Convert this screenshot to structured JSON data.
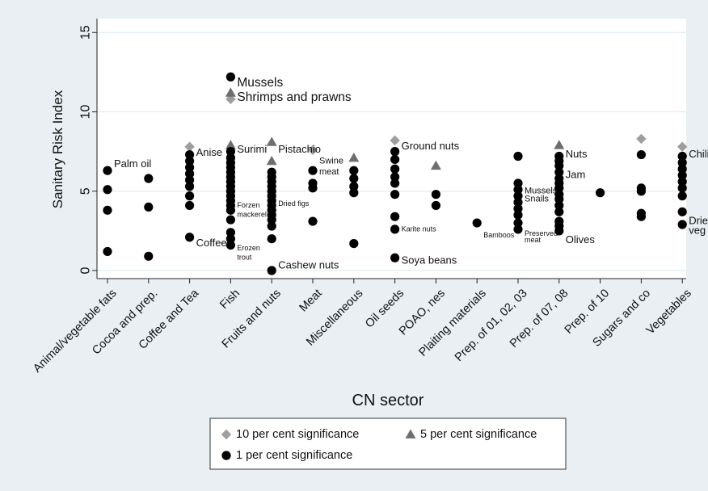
{
  "chart_data": {
    "type": "scatter",
    "title": "",
    "xlabel": "CN sector",
    "ylabel": "Sanitary Risk Index",
    "ylim": [
      -1,
      16
    ],
    "yticks": [
      0,
      5,
      10,
      15
    ],
    "grid": "horizontal",
    "legend_position": "bottom",
    "categories": [
      "Animal/vegetable fats",
      "Cocoa and prep.",
      "Coffee and Tea",
      "Fish",
      "Fruits and nuts",
      "Meat",
      "Miscellaneous",
      "Oil seeds",
      "POAO, nes",
      "Plaiting materials",
      "Prep. of 01, 02, 03",
      "Prep. of 07, 08",
      "Prep. of 10",
      "Sugars and co",
      "Vegetables"
    ],
    "series": [
      {
        "name": "10 per cent significance",
        "marker": "diamond",
        "color": "#9e9e9e",
        "points": [
          [
            "Coffee and Tea",
            7.8
          ],
          [
            "Fish",
            10.8
          ],
          [
            "Meat",
            7.6
          ],
          [
            "Oil seeds",
            8.2
          ],
          [
            "Sugars and co",
            8.3
          ],
          [
            "Vegetables",
            7.8
          ]
        ]
      },
      {
        "name": "5 per cent significance",
        "marker": "triangle",
        "color": "#6e6e6e",
        "points": [
          [
            "Fish",
            11.2
          ],
          [
            "Fish",
            7.9
          ],
          [
            "Fruits and nuts",
            8.1
          ],
          [
            "Fruits and nuts",
            6.9
          ],
          [
            "Miscellaneous",
            7.1
          ],
          [
            "POAO, nes",
            6.6
          ],
          [
            "Prep. of 07, 08",
            7.9
          ]
        ]
      },
      {
        "name": "1 per cent significance",
        "marker": "circle",
        "color": "#000000",
        "points": [
          [
            "Animal/vegetable fats",
            6.3
          ],
          [
            "Animal/vegetable fats",
            5.1
          ],
          [
            "Animal/vegetable fats",
            3.8
          ],
          [
            "Animal/vegetable fats",
            1.2
          ],
          [
            "Cocoa and prep.",
            5.8
          ],
          [
            "Cocoa and prep.",
            4.0
          ],
          [
            "Cocoa and prep.",
            0.9
          ],
          [
            "Coffee and Tea",
            7.3
          ],
          [
            "Coffee and Tea",
            6.9
          ],
          [
            "Coffee and Tea",
            6.5
          ],
          [
            "Coffee and Tea",
            6.1
          ],
          [
            "Coffee and Tea",
            5.7
          ],
          [
            "Coffee and Tea",
            5.3
          ],
          [
            "Coffee and Tea",
            4.7
          ],
          [
            "Coffee and Tea",
            4.1
          ],
          [
            "Coffee and Tea",
            2.1
          ],
          [
            "Fish",
            12.2
          ],
          [
            "Fish",
            7.5
          ],
          [
            "Fish",
            7.1
          ],
          [
            "Fish",
            6.8
          ],
          [
            "Fish",
            6.5
          ],
          [
            "Fish",
            6.2
          ],
          [
            "Fish",
            5.9
          ],
          [
            "Fish",
            5.6
          ],
          [
            "Fish",
            5.3
          ],
          [
            "Fish",
            5.0
          ],
          [
            "Fish",
            4.7
          ],
          [
            "Fish",
            4.4
          ],
          [
            "Fish",
            4.1
          ],
          [
            "Fish",
            3.8
          ],
          [
            "Fish",
            3.2
          ],
          [
            "Fish",
            2.4
          ],
          [
            "Fish",
            2.0
          ],
          [
            "Fish",
            1.6
          ],
          [
            "Fruits and nuts",
            6.2
          ],
          [
            "Fruits and nuts",
            5.9
          ],
          [
            "Fruits and nuts",
            5.6
          ],
          [
            "Fruits and nuts",
            5.3
          ],
          [
            "Fruits and nuts",
            5.0
          ],
          [
            "Fruits and nuts",
            4.7
          ],
          [
            "Fruits and nuts",
            4.4
          ],
          [
            "Fruits and nuts",
            4.1
          ],
          [
            "Fruits and nuts",
            3.8
          ],
          [
            "Fruits and nuts",
            3.5
          ],
          [
            "Fruits and nuts",
            3.2
          ],
          [
            "Fruits and nuts",
            2.8
          ],
          [
            "Fruits and nuts",
            2.0
          ],
          [
            "Fruits and nuts",
            0.0
          ],
          [
            "Meat",
            6.3
          ],
          [
            "Meat",
            5.5
          ],
          [
            "Meat",
            5.2
          ],
          [
            "Meat",
            3.1
          ],
          [
            "Miscellaneous",
            6.3
          ],
          [
            "Miscellaneous",
            5.8
          ],
          [
            "Miscellaneous",
            5.3
          ],
          [
            "Miscellaneous",
            4.9
          ],
          [
            "Miscellaneous",
            1.7
          ],
          [
            "Oil seeds",
            7.5
          ],
          [
            "Oil seeds",
            7.0
          ],
          [
            "Oil seeds",
            6.4
          ],
          [
            "Oil seeds",
            5.9
          ],
          [
            "Oil seeds",
            5.5
          ],
          [
            "Oil seeds",
            4.8
          ],
          [
            "Oil seeds",
            3.4
          ],
          [
            "Oil seeds",
            2.6
          ],
          [
            "Oil seeds",
            0.8
          ],
          [
            "POAO, nes",
            4.8
          ],
          [
            "POAO, nes",
            4.1
          ],
          [
            "Plaiting materials",
            3.0
          ],
          [
            "Prep. of 01, 02, 03",
            7.2
          ],
          [
            "Prep. of 01, 02, 03",
            5.5
          ],
          [
            "Prep. of 01, 02, 03",
            5.1
          ],
          [
            "Prep. of 01, 02, 03",
            4.7
          ],
          [
            "Prep. of 01, 02, 03",
            4.3
          ],
          [
            "Prep. of 01, 02, 03",
            3.9
          ],
          [
            "Prep. of 01, 02, 03",
            3.5
          ],
          [
            "Prep. of 01, 02, 03",
            3.0
          ],
          [
            "Prep. of 01, 02, 03",
            2.6
          ],
          [
            "Prep. of 07, 08",
            7.2
          ],
          [
            "Prep. of 07, 08",
            6.9
          ],
          [
            "Prep. of 07, 08",
            6.6
          ],
          [
            "Prep. of 07, 08",
            6.2
          ],
          [
            "Prep. of 07, 08",
            5.8
          ],
          [
            "Prep. of 07, 08",
            5.5
          ],
          [
            "Prep. of 07, 08",
            5.2
          ],
          [
            "Prep. of 07, 08",
            4.8
          ],
          [
            "Prep. of 07, 08",
            4.5
          ],
          [
            "Prep. of 07, 08",
            4.1
          ],
          [
            "Prep. of 07, 08",
            3.7
          ],
          [
            "Prep. of 07, 08",
            3.1
          ],
          [
            "Prep. of 07, 08",
            2.8
          ],
          [
            "Prep. of 07, 08",
            2.5
          ],
          [
            "Prep. of 10",
            4.9
          ],
          [
            "Sugars and co",
            7.3
          ],
          [
            "Sugars and co",
            5.2
          ],
          [
            "Sugars and co",
            5.0
          ],
          [
            "Sugars and co",
            3.6
          ],
          [
            "Sugars and co",
            3.4
          ],
          [
            "Vegetables",
            7.2
          ],
          [
            "Vegetables",
            6.8
          ],
          [
            "Vegetables",
            6.4
          ],
          [
            "Vegetables",
            6.0
          ],
          [
            "Vegetables",
            5.6
          ],
          [
            "Vegetables",
            5.2
          ],
          [
            "Vegetables",
            4.7
          ],
          [
            "Vegetables",
            3.7
          ],
          [
            "Vegetables",
            2.9
          ]
        ]
      }
    ],
    "annotations": [
      {
        "text": "Palm oil",
        "category": "Animal/vegetable fats",
        "y": 6.7,
        "size": "m"
      },
      {
        "text": "Anise",
        "category": "Coffee and Tea",
        "y": 7.4,
        "size": "m"
      },
      {
        "text": "Coffee",
        "category": "Coffee and Tea",
        "y": 1.7,
        "size": "m"
      },
      {
        "text": "Mussels",
        "category": "Fish",
        "y": 11.8,
        "size": "l"
      },
      {
        "text": "Shrimps and prawns",
        "category": "Fish",
        "y": 10.9,
        "size": "l"
      },
      {
        "text": "Surimi",
        "category": "Fish",
        "y": 7.6,
        "size": "m"
      },
      {
        "text": "Forzen",
        "category": "Fish",
        "y": 4.1,
        "size": "xs"
      },
      {
        "text": "mackerel",
        "category": "Fish",
        "y": 3.5,
        "size": "xs"
      },
      {
        "text": "Erozen",
        "category": "Fish",
        "y": 1.4,
        "size": "xs"
      },
      {
        "text": "trout",
        "category": "Fish",
        "y": 0.8,
        "size": "xs"
      },
      {
        "text": "Pistachio",
        "category": "Fruits and nuts",
        "y": 7.6,
        "size": "m"
      },
      {
        "text": "Dried figs",
        "category": "Fruits and nuts",
        "y": 4.2,
        "size": "xs"
      },
      {
        "text": "Cashew nuts",
        "category": "Fruits and nuts",
        "y": 0.3,
        "size": "m"
      },
      {
        "text": "Swine",
        "category": "Meat",
        "y": 6.9,
        "size": "s"
      },
      {
        "text": "meat",
        "category": "Meat",
        "y": 6.2,
        "size": "s"
      },
      {
        "text": "Ground nuts",
        "category": "Oil seeds",
        "y": 7.8,
        "size": "m"
      },
      {
        "text": "Karite nuts",
        "category": "Oil seeds",
        "y": 2.6,
        "size": "xs"
      },
      {
        "text": "Soya beans",
        "category": "Oil seeds",
        "y": 0.6,
        "size": "m"
      },
      {
        "text": "Bamboos",
        "category": "Plaiting materials",
        "y": 2.2,
        "size": "xs"
      },
      {
        "text": "Mussels",
        "category": "Prep. of 01, 02, 03",
        "y": 5.0,
        "size": "s"
      },
      {
        "text": "Snails",
        "category": "Prep. of 01, 02, 03",
        "y": 4.5,
        "size": "s"
      },
      {
        "text": "Preserved",
        "category": "Prep. of 01, 02, 03",
        "y": 2.3,
        "size": "xs"
      },
      {
        "text": "meat",
        "category": "Prep. of 01, 02, 03",
        "y": 1.9,
        "size": "xs"
      },
      {
        "text": "Nuts",
        "category": "Prep. of 07, 08",
        "y": 7.3,
        "size": "m"
      },
      {
        "text": "Jam",
        "category": "Prep. of 07, 08",
        "y": 6.0,
        "size": "m"
      },
      {
        "text": "Olives",
        "category": "Prep. of 07, 08",
        "y": 1.9,
        "size": "m"
      },
      {
        "text": "Chili",
        "category": "Vegetables",
        "y": 7.3,
        "size": "m"
      },
      {
        "text": "Dried",
        "category": "Vegetables",
        "y": 3.1,
        "size": "m"
      },
      {
        "text": "veg",
        "category": "Vegetables",
        "y": 2.5,
        "size": "m"
      }
    ]
  }
}
